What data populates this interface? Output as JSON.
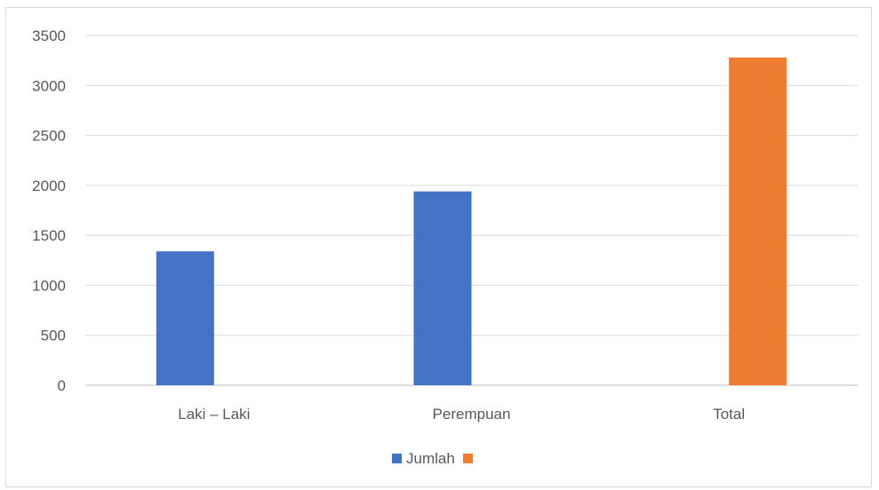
{
  "chart_data": {
    "type": "bar",
    "categories": [
      "Laki – Laki",
      "Perempuan",
      "Total"
    ],
    "series": [
      {
        "name": "Jumlah",
        "color": "#4472c4",
        "values": [
          1340,
          1940,
          null
        ]
      },
      {
        "name": "",
        "color": "#ed7d31",
        "values": [
          null,
          null,
          3280
        ]
      }
    ],
    "yticks": [
      "0",
      "500",
      "1000",
      "1500",
      "2000",
      "2500",
      "3000",
      "3500"
    ],
    "ylim": [
      0,
      3500
    ],
    "grid": true,
    "legend": "bottom-center",
    "title": "",
    "xlabel": "",
    "ylabel": ""
  }
}
